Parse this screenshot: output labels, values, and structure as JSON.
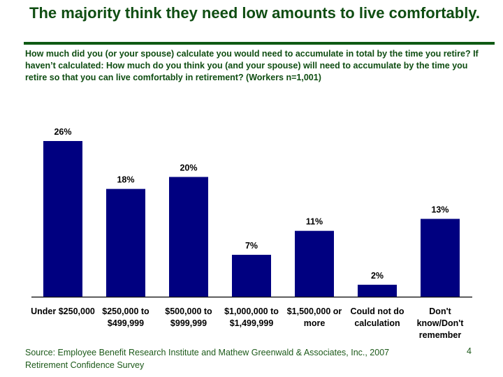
{
  "slide": {
    "title": "The majority think they need low amounts to live comfortably.",
    "subtitle": "How much did you (or your spouse) calculate you would need to accumulate in total by the time you retire?  If haven’t calculated: How much do you think you (and your spouse) will need to accumulate by the time you retire so that you can live comfortably in retirement?  (Workers n=1,001)",
    "source": "Source: Employee Benefit Research Institute and Mathew Greenwald & Associates, Inc., 2007 Retirement Confidence Survey",
    "page_number": "4"
  },
  "colors": {
    "bar": "#000080",
    "title": "#0f4d12",
    "rule": "#0f5a14"
  },
  "chart_data": {
    "type": "bar",
    "title": "",
    "xlabel": "",
    "ylabel": "",
    "categories": [
      "Under $250,000",
      "$250,000 to $499,999",
      "$500,000 to $999,999",
      "$1,000,000 to $1,499,999",
      "$1,500,000 or more",
      "Could not do calculation",
      "Don't know/Don't remember"
    ],
    "values": [
      26,
      18,
      20,
      7,
      11,
      2,
      13
    ],
    "data_labels": [
      "26%",
      "18%",
      "20%",
      "7%",
      "11%",
      "2%",
      "13%"
    ],
    "unit": "%",
    "ylim": [
      0,
      26
    ],
    "grid": false,
    "legend": "none"
  }
}
